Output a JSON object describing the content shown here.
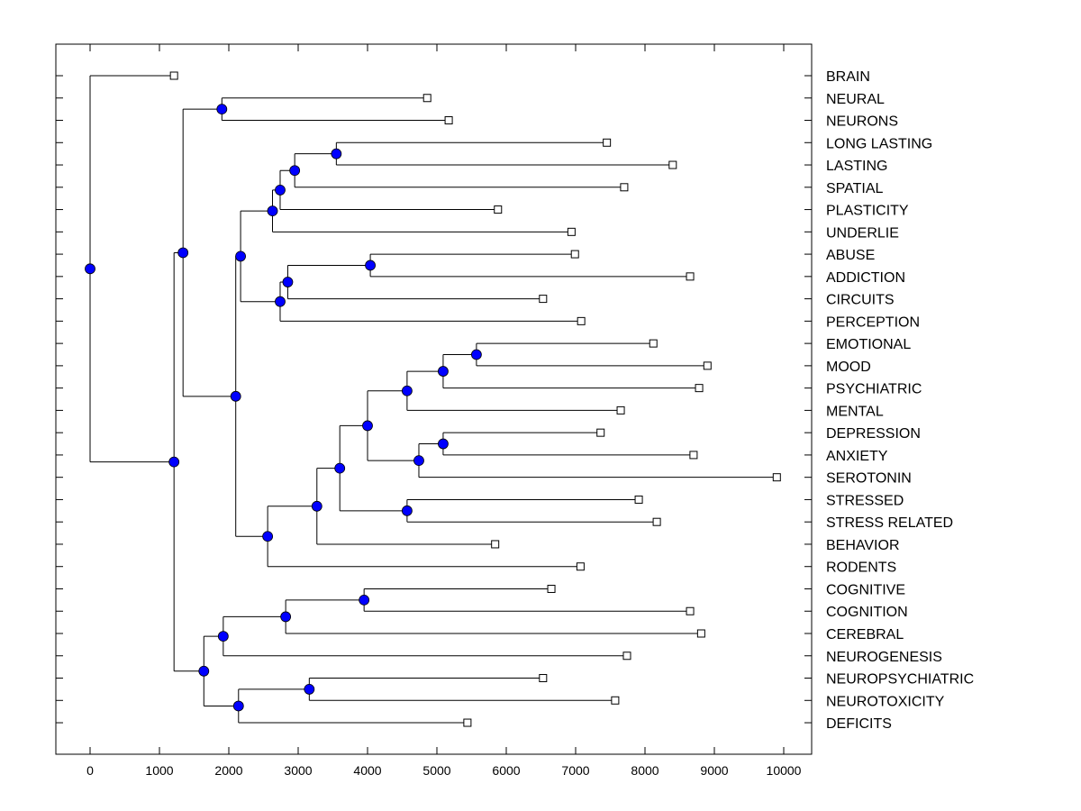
{
  "chart_data": {
    "type": "dendrogram",
    "title": "",
    "xlabel": "",
    "ylabel": "",
    "xlim": [
      -500,
      10400
    ],
    "x_ticks": [
      0,
      1000,
      2000,
      3000,
      4000,
      5000,
      6000,
      7000,
      8000,
      9000,
      10000
    ],
    "x_tick_labels": [
      "0",
      "1000",
      "2000",
      "3000",
      "4000",
      "5000",
      "6000",
      "7000",
      "8000",
      "9000",
      "10000"
    ],
    "grid": false,
    "leaves": [
      {
        "label": "BRAIN",
        "value": 1210
      },
      {
        "label": "NEURAL",
        "value": 4860
      },
      {
        "label": "NEURONS",
        "value": 5170
      },
      {
        "label": "LONG LASTING",
        "value": 7450
      },
      {
        "label": "LASTING",
        "value": 8400
      },
      {
        "label": "SPATIAL",
        "value": 7700
      },
      {
        "label": "PLASTICITY",
        "value": 5880
      },
      {
        "label": "UNDERLIE",
        "value": 6940
      },
      {
        "label": "ABUSE",
        "value": 6990
      },
      {
        "label": "ADDICTION",
        "value": 8650
      },
      {
        "label": "CIRCUITS",
        "value": 6530
      },
      {
        "label": "PERCEPTION",
        "value": 7080
      },
      {
        "label": "EMOTIONAL",
        "value": 8120
      },
      {
        "label": "MOOD",
        "value": 8900
      },
      {
        "label": "PSYCHIATRIC",
        "value": 8780
      },
      {
        "label": "MENTAL",
        "value": 7650
      },
      {
        "label": "DEPRESSION",
        "value": 7360
      },
      {
        "label": "ANXIETY",
        "value": 8700
      },
      {
        "label": "SEROTONIN",
        "value": 9900
      },
      {
        "label": "STRESSED",
        "value": 7910
      },
      {
        "label": "STRESS RELATED",
        "value": 8170
      },
      {
        "label": "BEHAVIOR",
        "value": 5840
      },
      {
        "label": "RODENTS",
        "value": 7070
      },
      {
        "label": "COGNITIVE",
        "value": 6650
      },
      {
        "label": "COGNITION",
        "value": 8650
      },
      {
        "label": "CEREBRAL",
        "value": 8810
      },
      {
        "label": "NEUROGENESIS",
        "value": 7740
      },
      {
        "label": "NEUROPSYCHIATRIC",
        "value": 6530
      },
      {
        "label": "NEUROTOXICITY",
        "value": 7570
      },
      {
        "label": "DEFICITS",
        "value": 5440
      }
    ],
    "tree": {
      "value": 0,
      "children": [
        {
          "leaf": 0
        },
        {
          "value": 1210,
          "children": [
            {
              "value": 1340,
              "children": [
                {
                  "value": 1900,
                  "children": [
                    {
                      "leaf": 1
                    },
                    {
                      "leaf": 2
                    }
                  ]
                },
                {
                  "value": 2100,
                  "children": [
                    {
                      "value": 2170,
                      "children": [
                        {
                          "value": 2630,
                          "children": [
                            {
                              "value": 2740,
                              "children": [
                                {
                                  "value": 2950,
                                  "children": [
                                    {
                                      "value": 3550,
                                      "children": [
                                        {
                                          "leaf": 3
                                        },
                                        {
                                          "leaf": 4
                                        }
                                      ]
                                    },
                                    {
                                      "leaf": 5
                                    }
                                  ]
                                },
                                {
                                  "leaf": 6
                                }
                              ]
                            },
                            {
                              "leaf": 7
                            }
                          ]
                        },
                        {
                          "value": 2740,
                          "children": [
                            {
                              "value": 2850,
                              "children": [
                                {
                                  "value": 4040,
                                  "children": [
                                    {
                                      "leaf": 8
                                    },
                                    {
                                      "leaf": 9
                                    }
                                  ]
                                },
                                {
                                  "leaf": 10
                                }
                              ]
                            },
                            {
                              "leaf": 11
                            }
                          ]
                        }
                      ]
                    },
                    {
                      "value": 2560,
                      "children": [
                        {
                          "value": 3270,
                          "children": [
                            {
                              "value": 3600,
                              "children": [
                                {
                                  "value": 4000,
                                  "children": [
                                    {
                                      "value": 4570,
                                      "children": [
                                        {
                                          "value": 5090,
                                          "children": [
                                            {
                                              "value": 5570,
                                              "children": [
                                                {
                                                  "leaf": 12
                                                },
                                                {
                                                  "leaf": 13
                                                }
                                              ]
                                            },
                                            {
                                              "leaf": 14
                                            }
                                          ]
                                        },
                                        {
                                          "leaf": 15
                                        }
                                      ]
                                    },
                                    {
                                      "value": 4740,
                                      "children": [
                                        {
                                          "value": 5090,
                                          "children": [
                                            {
                                              "leaf": 16
                                            },
                                            {
                                              "leaf": 17
                                            }
                                          ]
                                        },
                                        {
                                          "leaf": 18
                                        }
                                      ]
                                    }
                                  ]
                                },
                                {
                                  "value": 4570,
                                  "children": [
                                    {
                                      "leaf": 19
                                    },
                                    {
                                      "leaf": 20
                                    }
                                  ]
                                }
                              ]
                            },
                            {
                              "leaf": 21
                            }
                          ]
                        },
                        {
                          "leaf": 22
                        }
                      ]
                    }
                  ]
                }
              ]
            },
            {
              "value": 1640,
              "children": [
                {
                  "value": 1920,
                  "children": [
                    {
                      "value": 2820,
                      "children": [
                        {
                          "value": 3950,
                          "children": [
                            {
                              "leaf": 23
                            },
                            {
                              "leaf": 24
                            }
                          ]
                        },
                        {
                          "leaf": 25
                        }
                      ]
                    },
                    {
                      "leaf": 26
                    }
                  ]
                },
                {
                  "value": 2140,
                  "children": [
                    {
                      "value": 3160,
                      "children": [
                        {
                          "leaf": 27
                        },
                        {
                          "leaf": 28
                        }
                      ]
                    },
                    {
                      "leaf": 29
                    }
                  ]
                }
              ]
            }
          ]
        }
      ]
    },
    "node_color": "#0000ff",
    "leaf_marker": "open-square"
  }
}
